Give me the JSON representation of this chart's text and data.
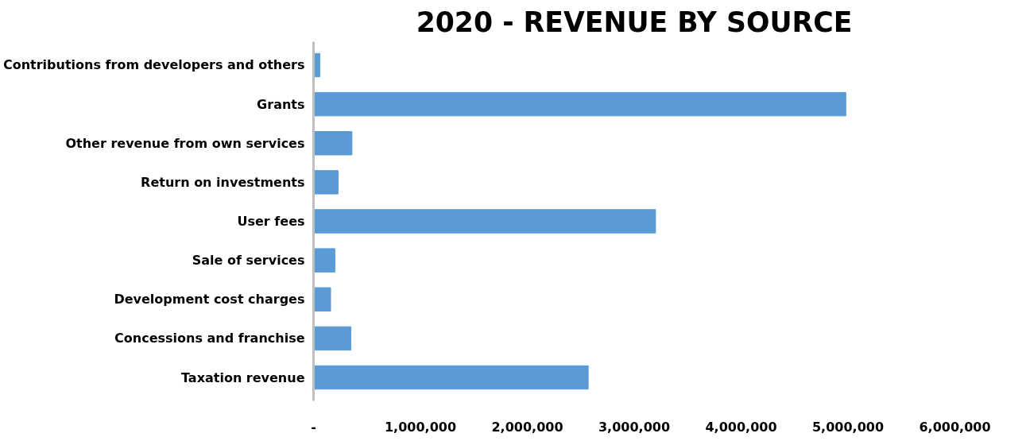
{
  "chart_data": {
    "type": "bar",
    "orientation": "horizontal",
    "title": "2020 - REVENUE BY SOURCE",
    "categories": [
      "Contributions from developers and others",
      "Grants",
      "Other revenue from own services",
      "Return on investments",
      "User fees",
      "Sale of services",
      "Development cost charges",
      "Concessions and franchise",
      "Taxation revenue"
    ],
    "values": [
      60000,
      4980000,
      360000,
      230000,
      3200000,
      200000,
      160000,
      350000,
      2570000
    ],
    "color": "#5b9bd5",
    "xlim": [
      0,
      6000000
    ],
    "xticks": [
      {
        "value": 0,
        "label": "-"
      },
      {
        "value": 1000000,
        "label": "1,000,000"
      },
      {
        "value": 2000000,
        "label": "2,000,000"
      },
      {
        "value": 3000000,
        "label": "3,000,000"
      },
      {
        "value": 4000000,
        "label": "4,000,000"
      },
      {
        "value": 5000000,
        "label": "5,000,000"
      },
      {
        "value": 6000000,
        "label": "6,000,000"
      }
    ],
    "grid": false
  }
}
